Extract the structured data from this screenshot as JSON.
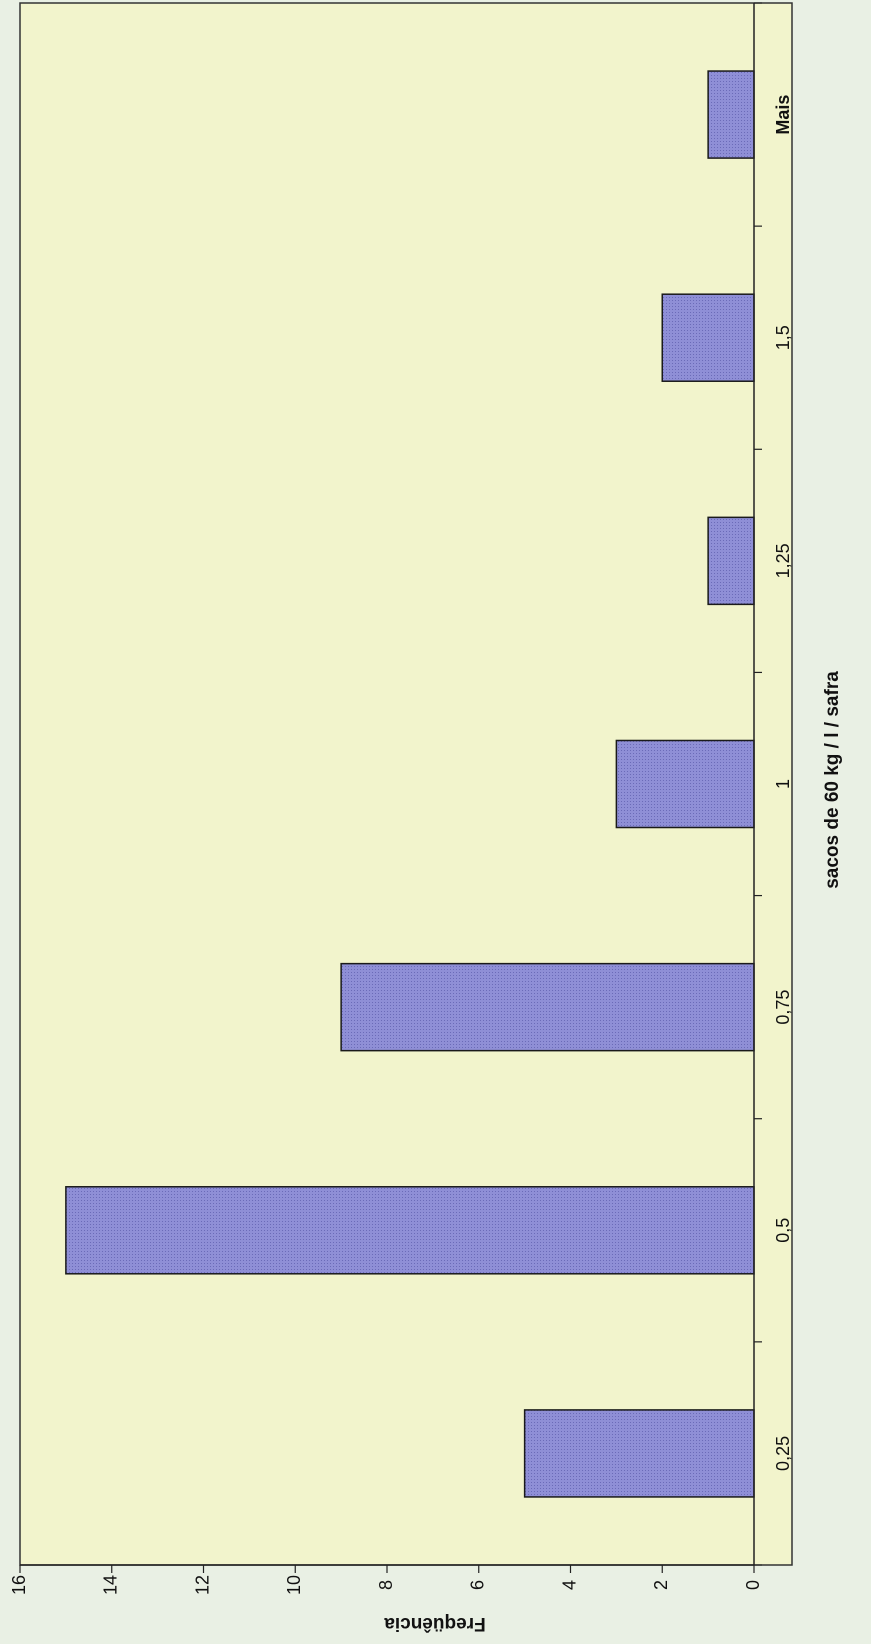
{
  "chart_data": {
    "type": "bar",
    "title": "",
    "categories": [
      "0,25",
      "0,5",
      "0,75",
      "1",
      "1,25",
      "1,5",
      "Mais"
    ],
    "values": [
      5,
      15,
      9,
      3,
      1,
      2,
      1
    ],
    "xlabel": "sacos de 60 kg / l / safra",
    "ylabel": "Freqüência",
    "ylim": [
      0,
      16
    ],
    "yticks": [
      0,
      2,
      4,
      6,
      8,
      10,
      12,
      14,
      16
    ],
    "orientation": "rotated-90-clockwise",
    "grid": false,
    "legend": "none",
    "colors": {
      "bar_fill": "#8f8fd6",
      "bar_stroke": "#1a1a1a",
      "plot_background": "#f2f4cc",
      "page_background": "#e9f0e4"
    }
  }
}
